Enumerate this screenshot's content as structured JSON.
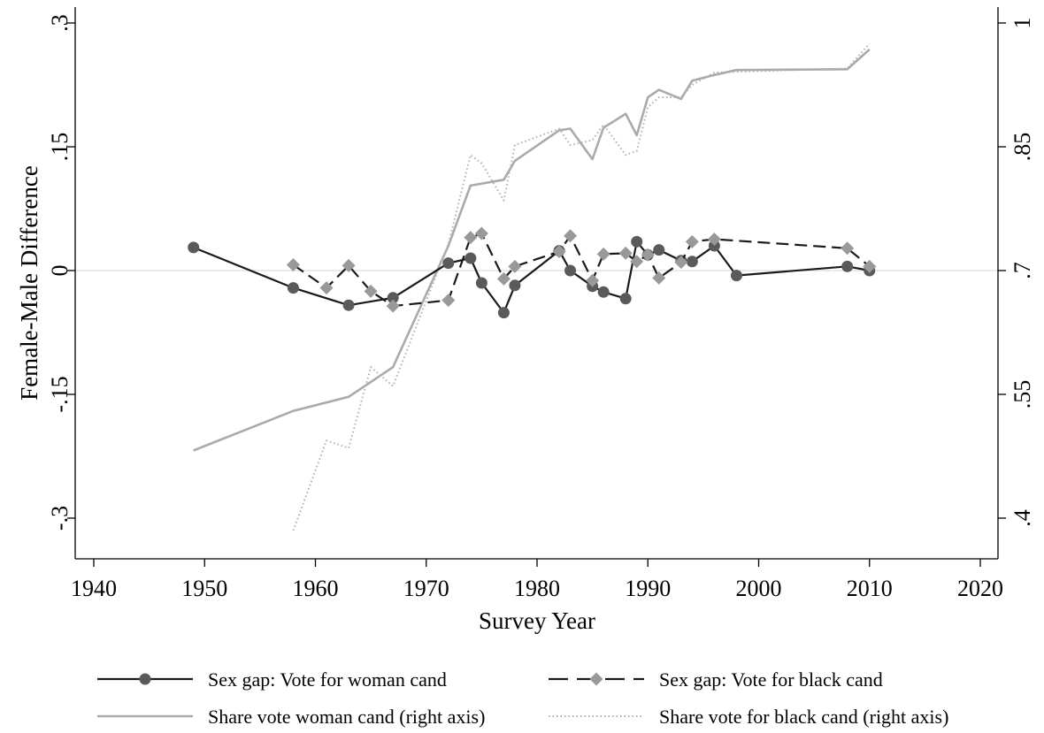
{
  "chart_data": {
    "type": "line",
    "title": "",
    "xlabel": "Survey Year",
    "ylabel": "Female-Male Difference",
    "y2label": "",
    "xlim": [
      1940,
      2020
    ],
    "ylim": [
      -0.35,
      0.32
    ],
    "y2lim": [
      0.35,
      1.02
    ],
    "xticks": [
      1940,
      1950,
      1960,
      1970,
      1980,
      1990,
      2000,
      2010,
      2020
    ],
    "yticks": [
      {
        "value": -0.3,
        "label": "-.3"
      },
      {
        "value": -0.15,
        "label": "-.15"
      },
      {
        "value": 0,
        "label": "0"
      },
      {
        "value": 0.15,
        "label": ".15"
      },
      {
        "value": 0.3,
        "label": ".3"
      }
    ],
    "y2ticks": [
      {
        "value": 0.4,
        "label": ".4"
      },
      {
        "value": 0.55,
        "label": ".55"
      },
      {
        "value": 0.7,
        "label": ".7"
      },
      {
        "value": 0.85,
        "label": ".85"
      },
      {
        "value": 1,
        "label": "1"
      }
    ],
    "zero_line": true,
    "grid": false,
    "legend_position": "bottom",
    "series": [
      {
        "name": "Sex gap: Vote for woman cand",
        "axis": "left",
        "style": "solid-circle",
        "color": "#1a1a1a",
        "marker_color": "#5a5a5a",
        "x": [
          1949,
          1958,
          1963,
          1967,
          1972,
          1974,
          1975,
          1977,
          1978,
          1982,
          1983,
          1985,
          1986,
          1988,
          1989,
          1990,
          1991,
          1993,
          1994,
          1996,
          1998,
          2008,
          2010
        ],
        "values": [
          0.028,
          -0.021,
          -0.042,
          -0.033,
          0.009,
          0.015,
          -0.015,
          -0.051,
          -0.018,
          0.024,
          0.0,
          -0.019,
          -0.026,
          -0.034,
          0.035,
          0.019,
          0.025,
          0.012,
          0.011,
          0.03,
          -0.006,
          0.005,
          0.0
        ]
      },
      {
        "name": "Sex gap: Vote for black cand",
        "axis": "left",
        "style": "dashed-diamond",
        "color": "#1a1a1a",
        "marker_color": "#999999",
        "x": [
          1958,
          1961,
          1963,
          1965,
          1967,
          1972,
          1974,
          1975,
          1977,
          1978,
          1982,
          1983,
          1985,
          1986,
          1988,
          1989,
          1990,
          1991,
          1993,
          1994,
          1996,
          2008,
          2010
        ],
        "values": [
          0.007,
          -0.021,
          0.006,
          -0.025,
          -0.043,
          -0.036,
          0.04,
          0.045,
          -0.01,
          0.005,
          0.023,
          0.042,
          -0.012,
          0.02,
          0.021,
          0.011,
          0.019,
          -0.009,
          0.01,
          0.035,
          0.038,
          0.027,
          0.005
        ]
      },
      {
        "name": "Share vote woman cand (right axis)",
        "axis": "right",
        "style": "solid-gray",
        "color": "#aaaaaa",
        "x": [
          1949,
          1958,
          1963,
          1967,
          1972,
          1974,
          1977,
          1978,
          1982,
          1983,
          1985,
          1986,
          1988,
          1989,
          1990,
          1991,
          1993,
          1994,
          1996,
          1998,
          2008,
          2010
        ],
        "values": [
          0.482,
          0.53,
          0.547,
          0.583,
          0.73,
          0.803,
          0.81,
          0.833,
          0.87,
          0.872,
          0.835,
          0.873,
          0.89,
          0.864,
          0.91,
          0.919,
          0.908,
          0.93,
          0.937,
          0.943,
          0.944,
          0.968
        ]
      },
      {
        "name": "Share vote for black cand (right axis)",
        "axis": "right",
        "style": "dotted-gray",
        "color": "#b0b0b0",
        "x": [
          1958,
          1961,
          1963,
          1965,
          1967,
          1972,
          1974,
          1975,
          1977,
          1978,
          1982,
          1983,
          1985,
          1986,
          1988,
          1989,
          1990,
          1991,
          1993,
          1994,
          1996,
          2008,
          2010
        ],
        "values": [
          0.385,
          0.494,
          0.485,
          0.583,
          0.56,
          0.732,
          0.84,
          0.83,
          0.785,
          0.852,
          0.872,
          0.852,
          0.858,
          0.877,
          0.84,
          0.845,
          0.898,
          0.91,
          0.91,
          0.925,
          0.94,
          0.945,
          0.975
        ]
      }
    ]
  }
}
